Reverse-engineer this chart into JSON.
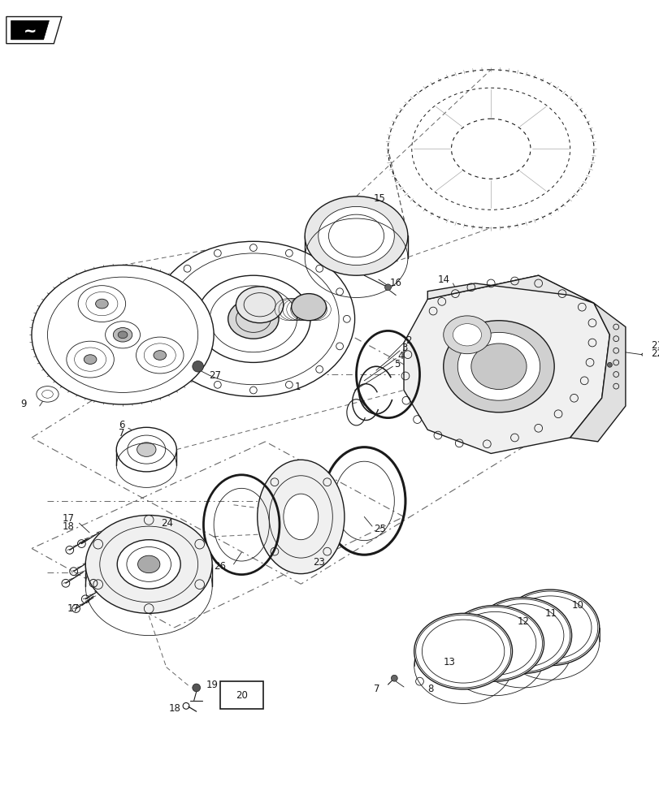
{
  "bg_color": "#ffffff",
  "fig_width": 8.12,
  "fig_height": 10.0,
  "dpi": 100,
  "color_main": "#1a1a1a",
  "lw_main": 1.0,
  "lw_thin": 0.6,
  "lw_heavy": 1.5
}
